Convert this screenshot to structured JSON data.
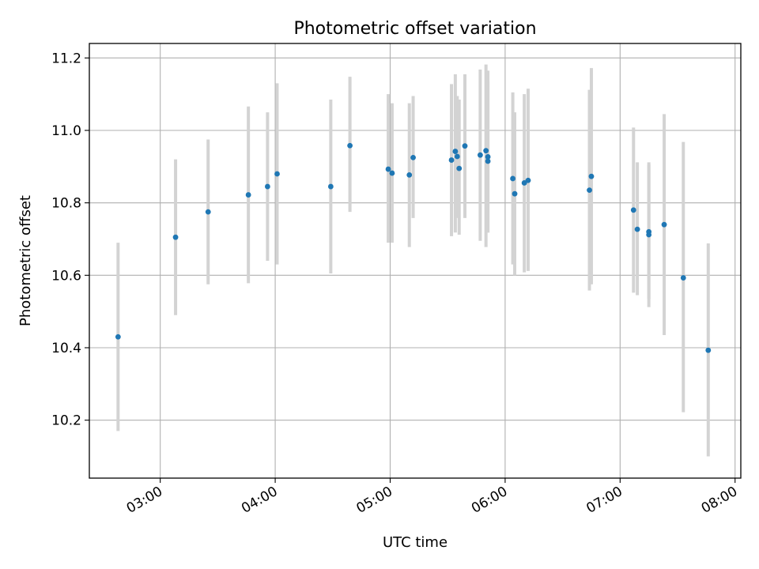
{
  "chart_data": {
    "type": "scatter",
    "title": "Photometric offset variation",
    "xlabel": "UTC time",
    "ylabel": "Photometric offset",
    "xlim": [
      "02:23",
      "08:03"
    ],
    "ylim": [
      10.04,
      11.24
    ],
    "grid": true,
    "x_ticks": [
      "03:00",
      "04:00",
      "05:00",
      "06:00",
      "07:00",
      "08:00"
    ],
    "y_ticks": [
      10.2,
      10.4,
      10.6,
      10.8,
      11.0,
      11.2
    ],
    "y_tick_labels": [
      "10.2",
      "10.4",
      "10.6",
      "10.8",
      "11.0",
      "11.2"
    ],
    "errorbar_color": "#d3d3d3",
    "point_color": "#1f77b4",
    "points": [
      {
        "x": "02:38",
        "y": 10.43,
        "ylow": 10.17,
        "yhigh": 10.69
      },
      {
        "x": "03:08",
        "y": 10.705,
        "ylow": 10.49,
        "yhigh": 10.92
      },
      {
        "x": "03:25",
        "y": 10.775,
        "ylow": 10.575,
        "yhigh": 10.975
      },
      {
        "x": "03:46",
        "y": 10.822,
        "ylow": 10.578,
        "yhigh": 11.066
      },
      {
        "x": "03:56",
        "y": 10.845,
        "ylow": 10.64,
        "yhigh": 11.05
      },
      {
        "x": "04:01",
        "y": 10.88,
        "ylow": 10.63,
        "yhigh": 11.13
      },
      {
        "x": "04:29",
        "y": 10.845,
        "ylow": 10.605,
        "yhigh": 11.085
      },
      {
        "x": "04:39",
        "y": 10.958,
        "ylow": 10.775,
        "yhigh": 11.148
      },
      {
        "x": "04:59",
        "y": 10.893,
        "ylow": 10.69,
        "yhigh": 11.1
      },
      {
        "x": "05:01",
        "y": 10.882,
        "ylow": 10.69,
        "yhigh": 11.075
      },
      {
        "x": "05:10",
        "y": 10.877,
        "ylow": 10.678,
        "yhigh": 11.075
      },
      {
        "x": "05:12",
        "y": 10.925,
        "ylow": 10.758,
        "yhigh": 11.095
      },
      {
        "x": "05:32",
        "y": 10.918,
        "ylow": 10.708,
        "yhigh": 11.128
      },
      {
        "x": "05:34",
        "y": 10.942,
        "ylow": 10.718,
        "yhigh": 11.155
      },
      {
        "x": "05:35",
        "y": 10.928,
        "ylow": 10.758,
        "yhigh": 11.095
      },
      {
        "x": "05:36",
        "y": 10.895,
        "ylow": 10.712,
        "yhigh": 11.085
      },
      {
        "x": "05:39",
        "y": 10.957,
        "ylow": 10.758,
        "yhigh": 11.155
      },
      {
        "x": "05:47",
        "y": 10.932,
        "ylow": 10.695,
        "yhigh": 11.168
      },
      {
        "x": "05:50",
        "y": 10.944,
        "ylow": 10.678,
        "yhigh": 11.182
      },
      {
        "x": "05:51",
        "y": 10.915,
        "ylow": 10.718,
        "yhigh": 11.165
      },
      {
        "x": "05:51",
        "y": 10.927,
        "ylow": 10.718,
        "yhigh": 11.135
      },
      {
        "x": "06:04",
        "y": 10.867,
        "ylow": 10.63,
        "yhigh": 11.105
      },
      {
        "x": "06:05",
        "y": 10.825,
        "ylow": 10.6,
        "yhigh": 11.05
      },
      {
        "x": "06:10",
        "y": 10.855,
        "ylow": 10.608,
        "yhigh": 11.1
      },
      {
        "x": "06:12",
        "y": 10.862,
        "ylow": 10.612,
        "yhigh": 11.115
      },
      {
        "x": "06:44",
        "y": 10.835,
        "ylow": 10.558,
        "yhigh": 11.112
      },
      {
        "x": "06:45",
        "y": 10.873,
        "ylow": 10.575,
        "yhigh": 11.172
      },
      {
        "x": "07:07",
        "y": 10.78,
        "ylow": 10.552,
        "yhigh": 11.008
      },
      {
        "x": "07:09",
        "y": 10.727,
        "ylow": 10.545,
        "yhigh": 10.912
      },
      {
        "x": "07:15",
        "y": 10.712,
        "ylow": 10.512,
        "yhigh": 10.912
      },
      {
        "x": "07:15",
        "y": 10.72,
        "ylow": 10.535,
        "yhigh": 10.905
      },
      {
        "x": "07:23",
        "y": 10.74,
        "ylow": 10.435,
        "yhigh": 11.045
      },
      {
        "x": "07:33",
        "y": 10.593,
        "ylow": 10.222,
        "yhigh": 10.968
      },
      {
        "x": "07:46",
        "y": 10.393,
        "ylow": 10.1,
        "yhigh": 10.688
      }
    ]
  }
}
